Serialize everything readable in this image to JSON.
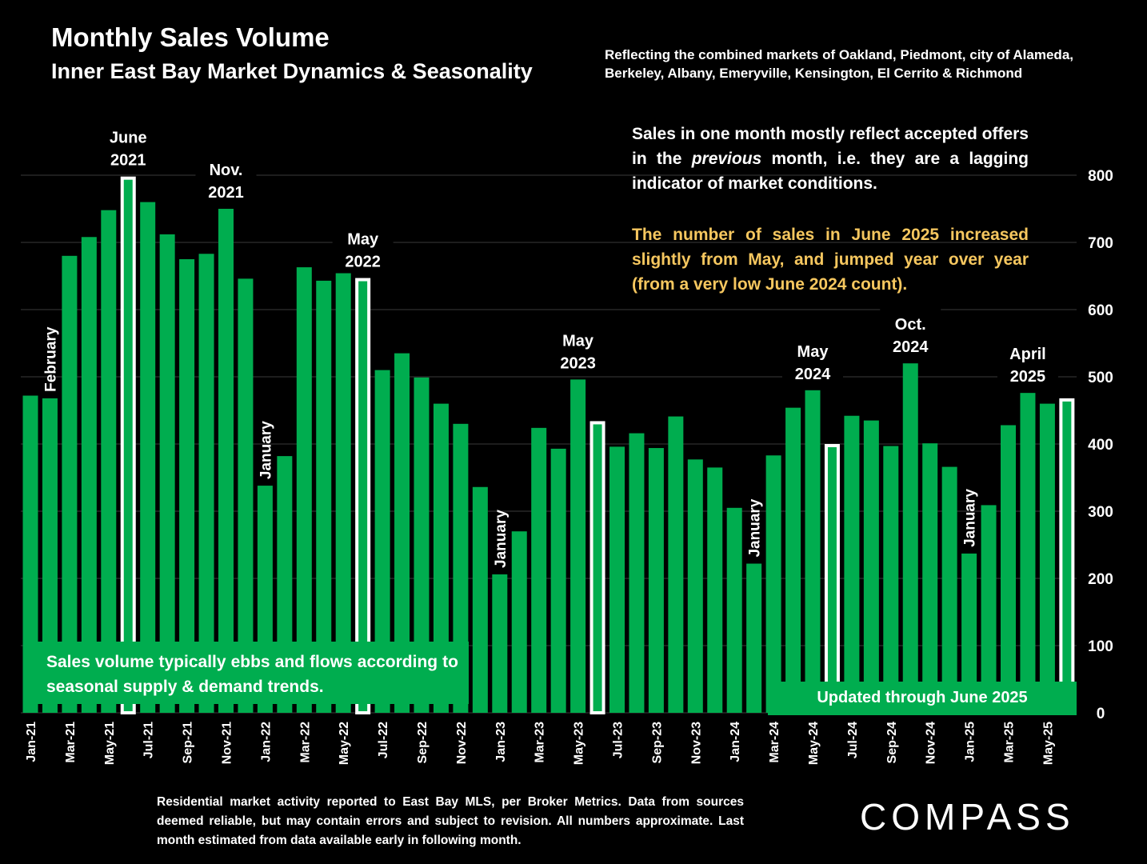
{
  "header": {
    "title": "Monthly Sales Volume",
    "subtitle": "Inner East Bay Market Dynamics & Seasonality",
    "markets_line1": "Reflecting the combined markets of Oakland, Piedmont, city of Alameda,",
    "markets_line2": "Berkeley, Albany, Emeryville, Kensington, El Cerrito & Richmond"
  },
  "notes": {
    "lag_prefix": "Sales in one month mostly reflect accepted offers in the ",
    "lag_emphasis": "previous",
    "lag_suffix": " month, i.e. they are a lagging indicator of market conditions.",
    "june_2025": "The number of sales in June 2025 increased slightly from May, and jumped year over year (from a very low June 2024 count)."
  },
  "seasonal_note": "Sales volume typically ebbs and flows according to seasonal supply & demand trends.",
  "updated_note": "Updated through June 2025",
  "footnote": "Residential market activity reported to East Bay MLS, per Broker Metrics. Data from sources deemed reliable, but may contain errors and subject to revision. All numbers approximate. Last month estimated from data available early in following month.",
  "logo": "COMPASS",
  "colors": {
    "bar": "#00ad4f",
    "highlight_outline": "#ffffff",
    "background": "#000000",
    "gold_text": "#f6c75f"
  },
  "chart_data": {
    "type": "bar",
    "ylim": [
      0,
      800
    ],
    "yticks": [
      0,
      100,
      200,
      300,
      400,
      500,
      600,
      700,
      800
    ],
    "y_axis_side": "right",
    "grid": true,
    "categories": [
      "Jan-21",
      "Feb-21",
      "Mar-21",
      "Apr-21",
      "May-21",
      "Jun-21",
      "Jul-21",
      "Aug-21",
      "Sep-21",
      "Oct-21",
      "Nov-21",
      "Dec-21",
      "Jan-22",
      "Feb-22",
      "Mar-22",
      "Apr-22",
      "May-22",
      "Jun-22",
      "Jul-22",
      "Aug-22",
      "Sep-22",
      "Oct-22",
      "Nov-22",
      "Dec-22",
      "Jan-23",
      "Feb-23",
      "Mar-23",
      "Apr-23",
      "May-23",
      "Jun-23",
      "Jul-23",
      "Aug-23",
      "Sep-23",
      "Oct-23",
      "Nov-23",
      "Dec-23",
      "Jan-24",
      "Feb-24",
      "Mar-24",
      "Apr-24",
      "May-24",
      "Jun-24",
      "Jul-24",
      "Aug-24",
      "Sep-24",
      "Oct-24",
      "Nov-24",
      "Dec-24",
      "Jan-25",
      "Feb-25",
      "Mar-25",
      "Apr-25",
      "May-25",
      "Jun-25"
    ],
    "x_tick_labels": [
      "Jan-21",
      "",
      "Mar-21",
      "",
      "May-21",
      "",
      "Jul-21",
      "",
      "Sep-21",
      "",
      "Nov-21",
      "",
      "Jan-22",
      "",
      "Mar-22",
      "",
      "May-22",
      "",
      "Jul-22",
      "",
      "Sep-22",
      "",
      "Nov-22",
      "",
      "Jan-23",
      "",
      "Mar-23",
      "",
      "May-23",
      "",
      "Jul-23",
      "",
      "Sep-23",
      "",
      "Nov-23",
      "",
      "Jan-24",
      "",
      "Mar-24",
      "",
      "May-24",
      "",
      "Jul-24",
      "",
      "Sep-24",
      "",
      "Nov-24",
      "",
      "Jan-25",
      "",
      "Mar-25",
      "",
      "May-25",
      ""
    ],
    "values": [
      472,
      468,
      680,
      708,
      748,
      798,
      760,
      712,
      675,
      683,
      750,
      646,
      338,
      382,
      663,
      643,
      684,
      647,
      510,
      535,
      499,
      460,
      430,
      336,
      206,
      270,
      424,
      393,
      496,
      434,
      396,
      416,
      394,
      441,
      377,
      365,
      305,
      222,
      383,
      454,
      480,
      400,
      442,
      435,
      397,
      520,
      401,
      366,
      237,
      309,
      428,
      476,
      460,
      468
    ],
    "highlighted": [
      "Jun-21",
      "Jun-22",
      "Jun-23",
      "Jun-24",
      "Jun-25"
    ],
    "annotations": [
      {
        "category": "Feb-21",
        "text": "February",
        "vertical": true
      },
      {
        "category": "Jun-21",
        "text": "June 2021"
      },
      {
        "category": "Nov-21",
        "text": "Nov. 2021"
      },
      {
        "category": "Jan-22",
        "text": "January",
        "vertical": true
      },
      {
        "category": "Jun-22",
        "text": "May 2022"
      },
      {
        "category": "Jan-23",
        "text": "January",
        "vertical": true
      },
      {
        "category": "May-23",
        "text": "May 2023"
      },
      {
        "category": "Feb-24",
        "text": "January",
        "vertical": true
      },
      {
        "category": "May-24",
        "text": "May 2024"
      },
      {
        "category": "Oct-24",
        "text": "Oct. 2024"
      },
      {
        "category": "Jan-25",
        "text": "January",
        "vertical": true
      },
      {
        "category": "Apr-25",
        "text": "April 2025"
      }
    ]
  }
}
